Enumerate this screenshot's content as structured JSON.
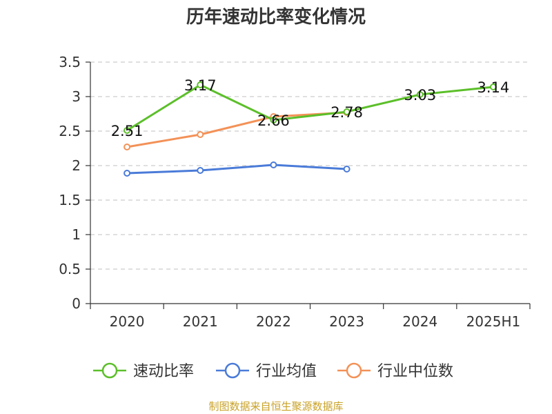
{
  "chart_data": {
    "type": "line",
    "title": "历年速动比率变化情况",
    "categories": [
      "2020",
      "2021",
      "2022",
      "2023",
      "2024",
      "2025H1"
    ],
    "ylim": [
      0,
      3.5
    ],
    "yticks": [
      "0",
      "0.5",
      "1",
      "1.5",
      "2",
      "2.5",
      "3",
      "3.5"
    ],
    "grid": true,
    "legend_position": "bottom",
    "series": [
      {
        "name": "速动比率",
        "color": "#5cbf2a",
        "values": [
          2.51,
          3.17,
          2.66,
          2.78,
          3.03,
          3.14
        ],
        "labels": [
          "2.51",
          "3.17",
          "2.66",
          "2.78",
          "3.03",
          "3.14"
        ]
      },
      {
        "name": "行业均值",
        "color": "#4a7bd8",
        "values": [
          1.89,
          1.93,
          2.01,
          1.95,
          null,
          null
        ]
      },
      {
        "name": "行业中位数",
        "color": "#f39157",
        "values": [
          2.27,
          2.45,
          2.71,
          2.77,
          null,
          null
        ]
      }
    ]
  },
  "footer": {
    "source": "制图数据来自恒生聚源数据库"
  }
}
